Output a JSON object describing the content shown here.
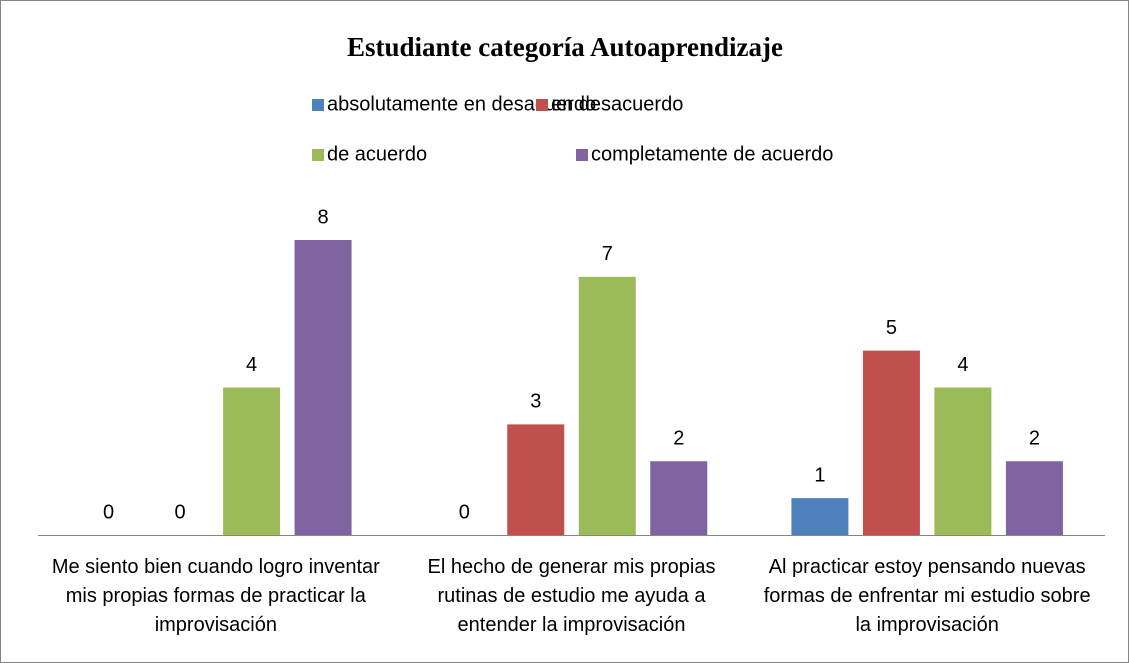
{
  "chart_data": {
    "type": "bar",
    "title": "Estudiante categoría Autoaprendizaje",
    "categories": [
      "Me siento bien cuando logro inventar mis propias formas de practicar la improvisación",
      "El hecho de generar mis propias rutinas de estudio me ayuda a entender la improvisación",
      "Al practicar estoy pensando nuevas formas de enfrentar mi estudio sobre la improvisación"
    ],
    "series": [
      {
        "name": "absolutamente en desacuerdo",
        "color": "#4f81bd",
        "values": [
          0,
          0,
          1
        ]
      },
      {
        "name": "en desacuerdo",
        "color": "#c0504d",
        "values": [
          0,
          3,
          5
        ]
      },
      {
        "name": "de acuerdo",
        "color": "#9bbb59",
        "values": [
          4,
          7,
          4
        ]
      },
      {
        "name": "completamente de acuerdo",
        "color": "#8064a2",
        "values": [
          8,
          2,
          2
        ]
      }
    ],
    "legend": "top"
  }
}
